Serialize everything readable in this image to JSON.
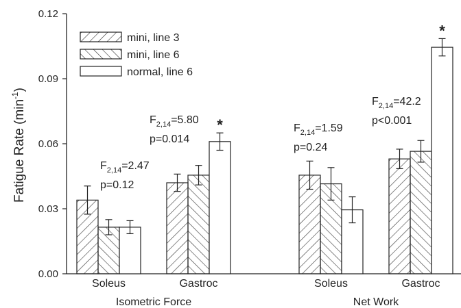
{
  "chart_data": {
    "type": "bar",
    "ylabel": "Fatigue Rate (min",
    "ylabel_sup": "-1",
    "ylabel_close": ")",
    "ylim": [
      0,
      0.12
    ],
    "yticks": [
      "0.00",
      "0.03",
      "0.06",
      "0.09",
      "0.12"
    ],
    "groups": [
      {
        "name": "Isometric Force",
        "categories": [
          "Soleus",
          "Gastroc"
        ]
      },
      {
        "name": "Net Work",
        "categories": [
          "Soleus",
          "Gastroc"
        ]
      }
    ],
    "categories": [
      "Soleus",
      "Gastroc",
      "Soleus",
      "Gastroc"
    ],
    "series": [
      {
        "name": "mini, line 3",
        "pattern": "forward-hatch",
        "values": [
          0.034,
          0.042,
          0.0455,
          0.053
        ],
        "errors": [
          0.0065,
          0.004,
          0.0065,
          0.0045
        ]
      },
      {
        "name": "mini, line 6",
        "pattern": "back-hatch",
        "values": [
          0.0215,
          0.0455,
          0.0415,
          0.0565
        ],
        "errors": [
          0.0035,
          0.0045,
          0.0075,
          0.005
        ]
      },
      {
        "name": "normal, line 6",
        "pattern": "none",
        "values": [
          0.0215,
          0.061,
          0.0295,
          0.1045
        ],
        "errors": [
          0.003,
          0.004,
          0.006,
          0.004
        ]
      }
    ],
    "annotations": [
      {
        "f_base": "F",
        "f_sub": "2,14",
        "f_val": "=2.47",
        "p": "p=0.12",
        "star": false
      },
      {
        "f_base": "F",
        "f_sub": "2,14",
        "f_val": "=5.80",
        "p": "p=0.014",
        "star": true
      },
      {
        "f_base": "F",
        "f_sub": "2,14",
        "f_val": "=1.59",
        "p": "p=0.24",
        "star": false
      },
      {
        "f_base": "F",
        "f_sub": "2,14",
        "f_val": "=42.2",
        "p": "p<0.001",
        "star": true
      }
    ],
    "star_symbol": "*",
    "legend_position": "top-left",
    "grid": false,
    "colors": {
      "axis": "#222222",
      "bar_fill": "#ffffff",
      "hatch": "#333333"
    }
  }
}
